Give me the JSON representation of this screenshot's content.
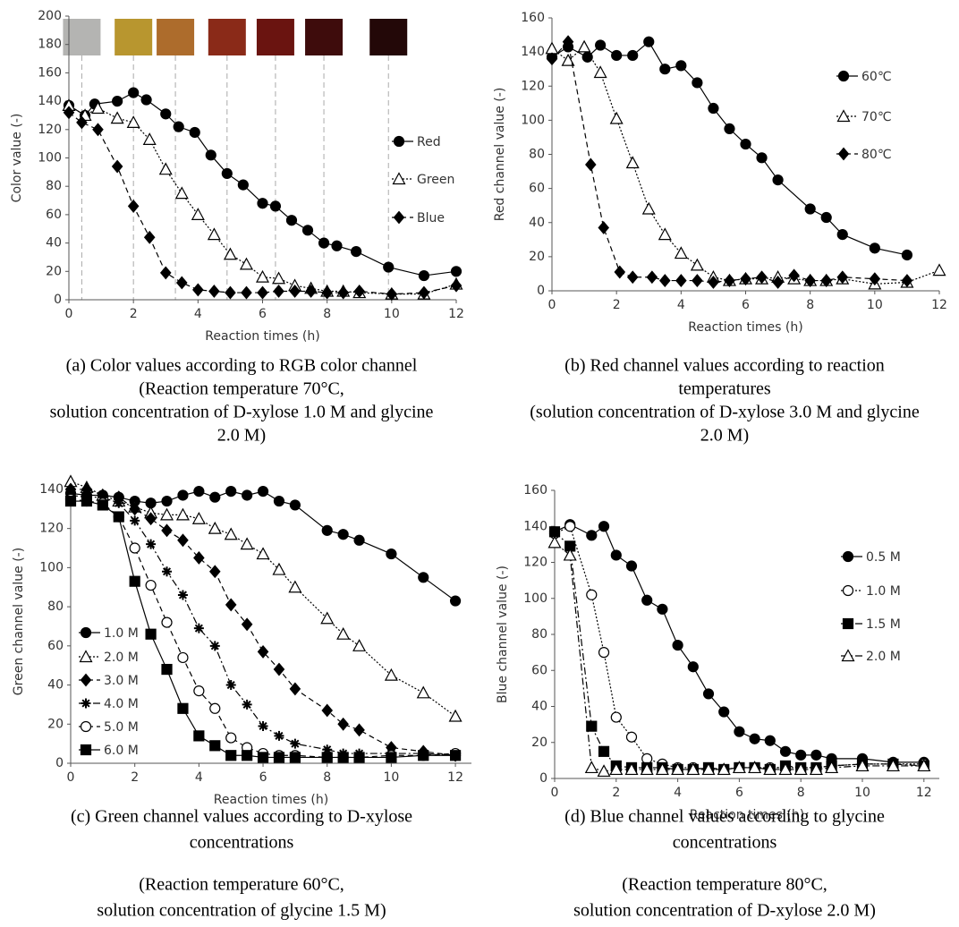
{
  "chart_data": [
    {
      "type": "line",
      "xlabel": "Reaction times (h)",
      "ylabel": "Color value (-)",
      "caption": [
        "(a) Color values according to RGB color channel",
        "(Reaction temperature 70°C,",
        "solution concentration of D-xylose 1.0 M and glycine",
        "2.0 M)"
      ],
      "xlim": [
        0,
        12
      ],
      "xticks": [
        0,
        2,
        4,
        6,
        8,
        10,
        12
      ],
      "ylim": [
        0,
        200
      ],
      "yticks": [
        0,
        20,
        40,
        60,
        80,
        100,
        120,
        140,
        160,
        180,
        200
      ],
      "grid": false,
      "legend": "right",
      "photos": [
        {
          "x": 0.4,
          "color": "#b4b4b2"
        },
        {
          "x": 2,
          "color": "#b8962f"
        },
        {
          "x": 3.3,
          "color": "#ad6c2c"
        },
        {
          "x": 4.9,
          "color": "#8a2a18"
        },
        {
          "x": 6.4,
          "color": "#6a1410"
        },
        {
          "x": 7.9,
          "color": "#3e0c0c"
        },
        {
          "x": 9.9,
          "color": "#230808"
        }
      ],
      "series": [
        {
          "name": "Red",
          "color": "#000000",
          "marker": "circle",
          "dash": "solid",
          "x": [
            0,
            0.5,
            0.8,
            1.5,
            2,
            2.4,
            3,
            3.4,
            3.9,
            4.4,
            4.9,
            5.4,
            6,
            6.4,
            6.9,
            7.4,
            7.9,
            8.3,
            8.9,
            9.9,
            11,
            12
          ],
          "values": [
            137,
            130,
            138,
            140,
            146,
            141,
            131,
            122,
            118,
            102,
            89,
            81,
            68,
            66,
            56,
            49,
            40,
            38,
            34,
            23,
            17,
            20
          ]
        },
        {
          "name": "Green",
          "color": "#000000",
          "marker": "triangle-open",
          "dash": "dotted",
          "x": [
            0,
            0.5,
            0.9,
            1.5,
            2,
            2.5,
            3,
            3.5,
            4,
            4.5,
            5,
            5.5,
            6,
            6.5,
            7,
            7.5,
            8,
            8.5,
            9,
            10,
            11,
            12
          ],
          "values": [
            137,
            130,
            135,
            128,
            125,
            113,
            92,
            75,
            60,
            46,
            32,
            25,
            16,
            15,
            10,
            8,
            6,
            6,
            5,
            4,
            4,
            11
          ]
        },
        {
          "name": "Blue",
          "color": "#000000",
          "marker": "diamond",
          "dash": "dashed",
          "x": [
            0,
            0.4,
            0.9,
            1.5,
            2,
            2.5,
            3,
            3.5,
            4,
            4.5,
            5,
            5.5,
            6,
            6.5,
            7,
            7.5,
            8,
            8.5,
            9,
            10,
            11,
            12
          ],
          "values": [
            132,
            125,
            120,
            94,
            66,
            44,
            19,
            12,
            7,
            6,
            5,
            5,
            5,
            6,
            6,
            6,
            5,
            5,
            6,
            4,
            5,
            10
          ]
        }
      ]
    },
    {
      "type": "line",
      "xlabel": "Reaction times (h)",
      "ylabel": "Red channel value (-)",
      "caption": [
        "(b) Red channel values according to reaction",
        "temperatures",
        "(solution concentration of D-xylose 3.0 M and glycine",
        "2.0 M)"
      ],
      "xlim": [
        0,
        12
      ],
      "xticks": [
        0,
        2,
        4,
        6,
        8,
        10,
        12
      ],
      "ylim": [
        0,
        160
      ],
      "yticks": [
        0,
        20,
        40,
        60,
        80,
        100,
        120,
        140,
        160
      ],
      "grid": false,
      "legend": "right",
      "series": [
        {
          "name": "60℃",
          "color": "#000000",
          "marker": "circle",
          "dash": "solid",
          "x": [
            0,
            0.5,
            1.1,
            1.5,
            2,
            2.5,
            3,
            3.5,
            4,
            4.5,
            5,
            5.5,
            6,
            6.5,
            7,
            8,
            8.5,
            9,
            10,
            11
          ],
          "values": [
            137,
            143,
            137,
            144,
            138,
            138,
            146,
            130,
            132,
            122,
            107,
            95,
            86,
            78,
            65,
            48,
            43,
            33,
            25,
            21
          ]
        },
        {
          "name": "70℃",
          "color": "#000000",
          "marker": "triangle-open",
          "dash": "dotted",
          "x": [
            0,
            0.5,
            1,
            1.5,
            2,
            2.5,
            3,
            3.5,
            4,
            4.5,
            5,
            5.5,
            6,
            6.5,
            7,
            7.5,
            8,
            8.5,
            9,
            10,
            11,
            12
          ],
          "values": [
            142,
            135,
            143,
            128,
            101,
            75,
            48,
            33,
            22,
            15,
            8,
            6,
            7,
            7,
            8,
            7,
            6,
            6,
            7,
            4,
            5,
            12
          ]
        },
        {
          "name": "80℃",
          "color": "#000000",
          "marker": "diamond",
          "dash": "dashed",
          "x": [
            0,
            0.5,
            1.2,
            1.6,
            2.1,
            2.5,
            3.1,
            3.5,
            4,
            4.5,
            5,
            5.5,
            6,
            6.5,
            7,
            7.5,
            8,
            8.5,
            9,
            10,
            11
          ],
          "values": [
            136,
            146,
            74,
            37,
            11,
            8,
            8,
            6,
            6,
            6,
            5,
            6,
            7,
            8,
            5,
            9,
            6,
            6,
            8,
            7,
            6
          ]
        }
      ]
    },
    {
      "type": "line",
      "xlabel": "Reaction times (h)",
      "ylabel": "Green channel value (-)",
      "caption": [
        "(c) Green channel values according to D-xylose",
        "concentrations",
        "(Reaction temperature 60°C,",
        "solution concentration of glycine 1.5 M)"
      ],
      "xlim": [
        0,
        12.5
      ],
      "xticks": [
        0,
        2,
        4,
        6,
        8,
        10,
        12
      ],
      "ylim": [
        0,
        145
      ],
      "yticks": [
        0,
        20,
        40,
        60,
        80,
        100,
        120,
        140
      ],
      "grid": false,
      "legend": "lower left",
      "series": [
        {
          "name": "1.0 M",
          "color": "#000000",
          "marker": "circle",
          "dash": "solid",
          "x": [
            0,
            0.5,
            1,
            1.5,
            2,
            2.5,
            3,
            3.5,
            4,
            4.5,
            5,
            5.5,
            6,
            6.5,
            7,
            8,
            8.5,
            9,
            10,
            11,
            12
          ],
          "values": [
            138,
            137,
            137,
            136,
            134,
            133,
            134,
            137,
            139,
            136,
            139,
            137,
            139,
            134,
            132,
            119,
            117,
            114,
            107,
            95,
            83
          ]
        },
        {
          "name": "2.0 M",
          "color": "#000000",
          "marker": "triangle-open",
          "dash": "dotted",
          "x": [
            0,
            0.5,
            1,
            1.5,
            2,
            2.5,
            3,
            3.5,
            4,
            4.5,
            5,
            5.5,
            6,
            6.5,
            7,
            8,
            8.5,
            9,
            10,
            11,
            12
          ],
          "values": [
            144,
            141,
            137,
            134,
            131,
            128,
            127,
            127,
            125,
            120,
            117,
            112,
            107,
            99,
            90,
            74,
            66,
            60,
            45,
            36,
            24
          ]
        },
        {
          "name": "3.0 M",
          "color": "#000000",
          "marker": "diamond",
          "dash": "dashed",
          "x": [
            0,
            0.5,
            1,
            1.5,
            2,
            2.5,
            3,
            3.5,
            4,
            4.5,
            5,
            5.5,
            6,
            6.5,
            7,
            8,
            8.5,
            9,
            10,
            11,
            12
          ],
          "values": [
            140,
            140,
            137,
            136,
            130,
            125,
            119,
            114,
            105,
            98,
            81,
            71,
            57,
            48,
            38,
            27,
            20,
            17,
            8,
            6,
            4
          ]
        },
        {
          "name": "4.0 M",
          "color": "#000000",
          "marker": "star",
          "dash": "dashdot",
          "x": [
            0,
            0.5,
            1,
            1.5,
            2,
            2.5,
            3,
            3.5,
            4,
            4.5,
            5,
            5.5,
            6,
            6.5,
            7,
            8,
            8.5,
            9,
            10,
            11,
            12
          ],
          "values": [
            137,
            136,
            136,
            133,
            124,
            112,
            98,
            86,
            69,
            60,
            40,
            30,
            19,
            14,
            10,
            7,
            5,
            5,
            5,
            5,
            4
          ]
        },
        {
          "name": "5.0 M",
          "color": "#000000",
          "marker": "circle-open",
          "dash": "dashed",
          "x": [
            0,
            0.5,
            1,
            1.5,
            2,
            2.5,
            3,
            3.5,
            4,
            4.5,
            5,
            5.5,
            6,
            6.5,
            7,
            8,
            8.5,
            9,
            10,
            11,
            12
          ],
          "values": [
            135,
            134,
            133,
            126,
            110,
            91,
            72,
            54,
            37,
            28,
            13,
            8,
            5,
            4,
            4,
            3,
            3,
            3,
            4,
            4,
            5
          ]
        },
        {
          "name": "6.0 M",
          "color": "#000000",
          "marker": "square",
          "dash": "solid",
          "x": [
            0,
            0.5,
            1,
            1.5,
            2,
            2.5,
            3,
            3.5,
            4,
            4.5,
            5,
            5.5,
            6,
            6.5,
            7,
            8,
            8.5,
            9,
            10,
            11,
            12
          ],
          "values": [
            134,
            134,
            132,
            126,
            93,
            66,
            48,
            28,
            14,
            9,
            4,
            4,
            3,
            3,
            3,
            3,
            3,
            3,
            3,
            4,
            4
          ]
        }
      ]
    },
    {
      "type": "line",
      "xlabel": "Reaction times (h)",
      "ylabel": "Blue channel value (-)",
      "caption": [
        "(d) Blue channel values according to glycine",
        "concentrations",
        "(Reaction temperature 80°C,",
        "solution concentration of D-xylose 2.0 M)"
      ],
      "xlim": [
        0,
        12.5
      ],
      "xticks": [
        0,
        2,
        4,
        6,
        8,
        10,
        12
      ],
      "ylim": [
        0,
        160
      ],
      "yticks": [
        0,
        20,
        40,
        60,
        80,
        100,
        120,
        140,
        160
      ],
      "grid": false,
      "legend": "right",
      "series": [
        {
          "name": "0.5 M",
          "color": "#000000",
          "marker": "circle",
          "dash": "solid",
          "x": [
            0,
            0.5,
            1.2,
            1.6,
            2,
            2.5,
            3,
            3.5,
            4,
            4.5,
            5,
            5.5,
            6,
            6.5,
            7,
            7.5,
            8,
            8.5,
            9,
            10,
            11,
            12
          ],
          "values": [
            137,
            141,
            135,
            140,
            124,
            118,
            99,
            94,
            74,
            62,
            47,
            37,
            26,
            22,
            21,
            15,
            13,
            13,
            11,
            11,
            9,
            9
          ]
        },
        {
          "name": "1.0 M",
          "color": "#000000",
          "marker": "circle-open",
          "dash": "dotted",
          "x": [
            0,
            0.5,
            1.2,
            1.6,
            2,
            2.5,
            3,
            3.5,
            4,
            4.5,
            5,
            5.5,
            6,
            6.5,
            7,
            7.5,
            8,
            8.5,
            9,
            10,
            11,
            12
          ],
          "values": [
            136,
            140,
            102,
            70,
            34,
            23,
            11,
            8,
            6,
            6,
            5,
            5,
            6,
            6,
            6,
            6,
            6,
            6,
            7,
            8,
            8,
            8
          ]
        },
        {
          "name": "1.5 M",
          "color": "#000000",
          "marker": "square",
          "dash": "dashdot",
          "x": [
            0,
            0.5,
            1.2,
            1.6,
            2,
            2.5,
            3,
            3.5,
            4,
            4.5,
            5,
            5.5,
            6,
            6.5,
            7,
            7.5,
            8,
            8.5,
            9,
            10,
            11,
            12
          ],
          "values": [
            137,
            129,
            29,
            15,
            7,
            6,
            6,
            6,
            5,
            5,
            6,
            5,
            6,
            6,
            5,
            7,
            6,
            6,
            7,
            8,
            8,
            7
          ]
        },
        {
          "name": "2.0 M",
          "color": "#000000",
          "marker": "triangle-open",
          "dash": "dashdot",
          "x": [
            0,
            0.5,
            1.2,
            1.6,
            2,
            2.5,
            3,
            3.5,
            4,
            4.5,
            5,
            5.5,
            6,
            6.5,
            7,
            7.5,
            8,
            8.5,
            9,
            10,
            11,
            12
          ],
          "values": [
            131,
            124,
            6,
            4,
            5,
            5,
            5,
            5,
            5,
            5,
            5,
            5,
            6,
            6,
            5,
            5,
            5,
            5,
            6,
            7,
            7,
            7
          ]
        }
      ]
    }
  ]
}
